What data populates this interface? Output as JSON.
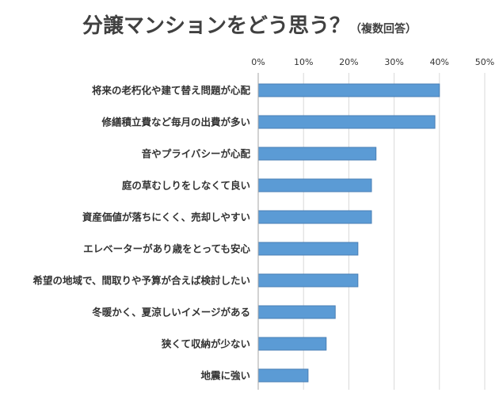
{
  "chart_data": {
    "type": "bar",
    "orientation": "horizontal",
    "title": "分譲マンションをどう思う？",
    "subtitle": "（複数回答）",
    "xlim": [
      0,
      50
    ],
    "x_ticks": [
      "0%",
      "10%",
      "20%",
      "30%",
      "40%",
      "50%"
    ],
    "x_tick_values": [
      0,
      10,
      20,
      30,
      40,
      50
    ],
    "x_axis_position": "top",
    "grid": true,
    "categories": [
      "将来の老朽化や建て替え問題が心配",
      "修繕積立費など毎月の出費が多い",
      "音やプライバシーが心配",
      "庭の草むしりをしなくて良い",
      "資産価値が落ちにくく、売却しやすい",
      "エレベーターがあり歳をとっても安心",
      "希望の地域で、間取りや予算が合えば検討したい",
      "冬暖かく、夏涼しいイメージがある",
      "狭くて収納が少ない",
      "地震に強い"
    ],
    "values": [
      40,
      39,
      26,
      25,
      25,
      22,
      22,
      17,
      15,
      11
    ],
    "bar_color": "#5b9bd5",
    "bar_edge_color": "#4a7fb5",
    "grid_color": "#d9d9d9"
  }
}
